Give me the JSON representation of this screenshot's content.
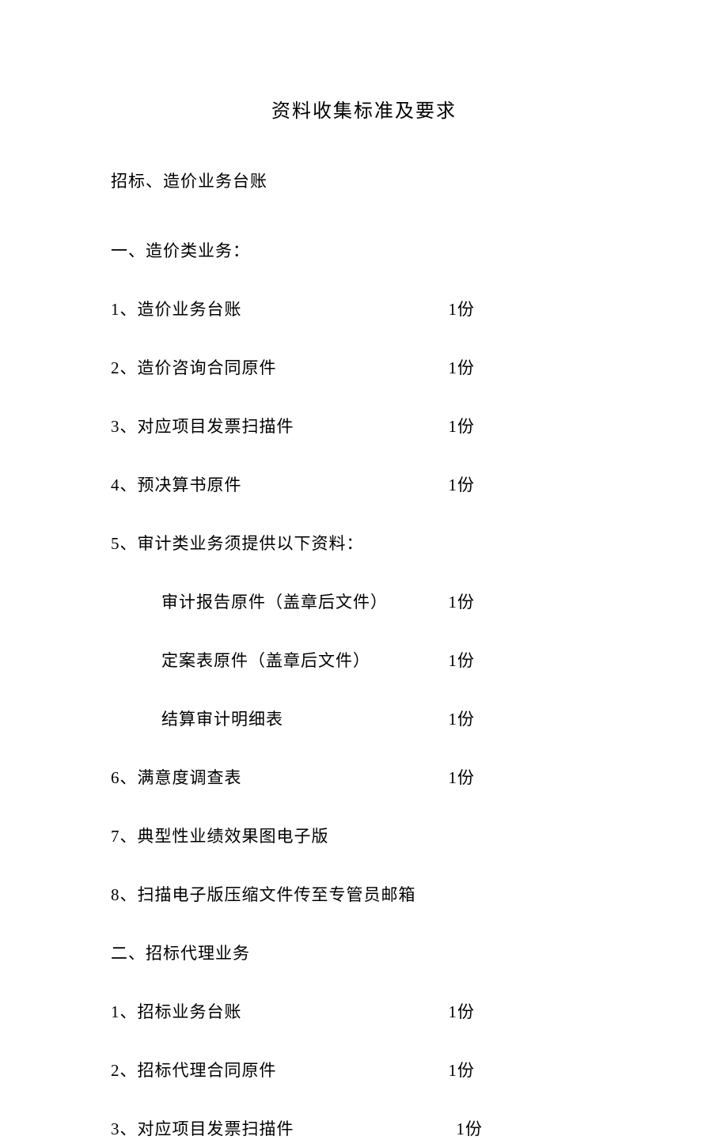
{
  "title": "资料收集标准及要求",
  "subtitle": "招标、造价业务台账",
  "section1": {
    "heading": "一、造价类业务：",
    "items": [
      {
        "label": "1、造价业务台账",
        "qty": "1份"
      },
      {
        "label": "2、造价咨询合同原件",
        "qty": "1份"
      },
      {
        "label": "3、对应项目发票扫描件",
        "qty": "1份"
      },
      {
        "label": "4、预决算书原件",
        "qty": "1份"
      }
    ],
    "item5_label": "5、审计类业务须提供以下资料：",
    "sub_items": [
      {
        "label": "审计报告原件（盖章后文件）",
        "qty": "1份"
      },
      {
        "label": "定案表原件（盖章后文件）",
        "qty": "1份"
      },
      {
        "label": "结算审计明细表",
        "qty": "1份"
      }
    ],
    "item6": {
      "label": "6、满意度调查表",
      "qty": "1份"
    },
    "item7": "7、典型性业绩效果图电子版",
    "item8": "8、扫描电子版压缩文件传至专管员邮箱"
  },
  "section2": {
    "heading": "二、招标代理业务",
    "items": [
      {
        "label": "1、招标业务台账",
        "qty": "1份"
      },
      {
        "label": "2、招标代理合同原件",
        "qty": "1份"
      },
      {
        "label": "3、对应项目发票扫描件",
        "qty": "1份"
      }
    ]
  }
}
